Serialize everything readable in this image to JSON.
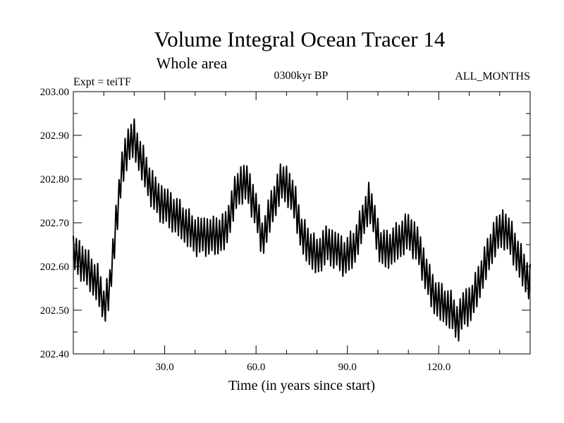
{
  "chart_data": {
    "type": "line",
    "title": "Volume Integral Ocean Tracer 14",
    "subtitle": "Whole area",
    "experiment_label": "Expt = teiTF",
    "period_label": "0300kyr BP",
    "months_label": "ALL_MONTHS",
    "xlabel": "Time (in years since start)",
    "ylabel": "",
    "xlim": [
      0,
      150
    ],
    "ylim": [
      202.4,
      203.0
    ],
    "x_ticks": [
      {
        "value": 30,
        "label": "30.0"
      },
      {
        "value": 60,
        "label": "60.0"
      },
      {
        "value": 90,
        "label": "90.0"
      },
      {
        "value": 120,
        "label": "120.0"
      }
    ],
    "x_minor_ticks": [
      10,
      20,
      40,
      50,
      70,
      80,
      100,
      110,
      130,
      140
    ],
    "y_ticks": [
      {
        "value": 202.4,
        "label": "202.40"
      },
      {
        "value": 202.5,
        "label": "202.50"
      },
      {
        "value": 202.6,
        "label": "202.60"
      },
      {
        "value": 202.7,
        "label": "202.70"
      },
      {
        "value": 202.8,
        "label": "202.80"
      },
      {
        "value": 202.9,
        "label": "202.90"
      },
      {
        "value": 203.0,
        "label": "203.00"
      }
    ],
    "samples_per_year": 4,
    "amplitude": 0.04,
    "series": [
      {
        "name": "Tracer 14",
        "color": "#000000",
        "trend_x": [
          0,
          3,
          6,
          8,
          10,
          12,
          14,
          16,
          18,
          20,
          22,
          25,
          28,
          30,
          33,
          36,
          40,
          44,
          47,
          50,
          53,
          55,
          57,
          60,
          62,
          65,
          68,
          70,
          73,
          75,
          78,
          80,
          83,
          86,
          89,
          92,
          95,
          97,
          99,
          101,
          104,
          107,
          110,
          113,
          116,
          118,
          120,
          122,
          124,
          126,
          128,
          131,
          134,
          136,
          138,
          141,
          144,
          146,
          148,
          150
        ],
        "trend_y": [
          202.63,
          202.61,
          202.58,
          202.56,
          202.51,
          202.55,
          202.7,
          202.82,
          202.88,
          202.89,
          202.85,
          202.79,
          202.75,
          202.74,
          202.72,
          202.7,
          202.67,
          202.67,
          202.67,
          202.68,
          202.76,
          202.79,
          202.79,
          202.73,
          202.66,
          202.73,
          202.79,
          202.79,
          202.74,
          202.67,
          202.64,
          202.62,
          202.65,
          202.64,
          202.62,
          202.64,
          202.7,
          202.75,
          202.7,
          202.64,
          202.64,
          202.66,
          202.68,
          202.65,
          202.58,
          202.54,
          202.52,
          202.51,
          202.5,
          202.47,
          202.5,
          202.52,
          202.58,
          202.62,
          202.66,
          202.69,
          202.66,
          202.62,
          202.59,
          202.56
        ]
      }
    ]
  }
}
